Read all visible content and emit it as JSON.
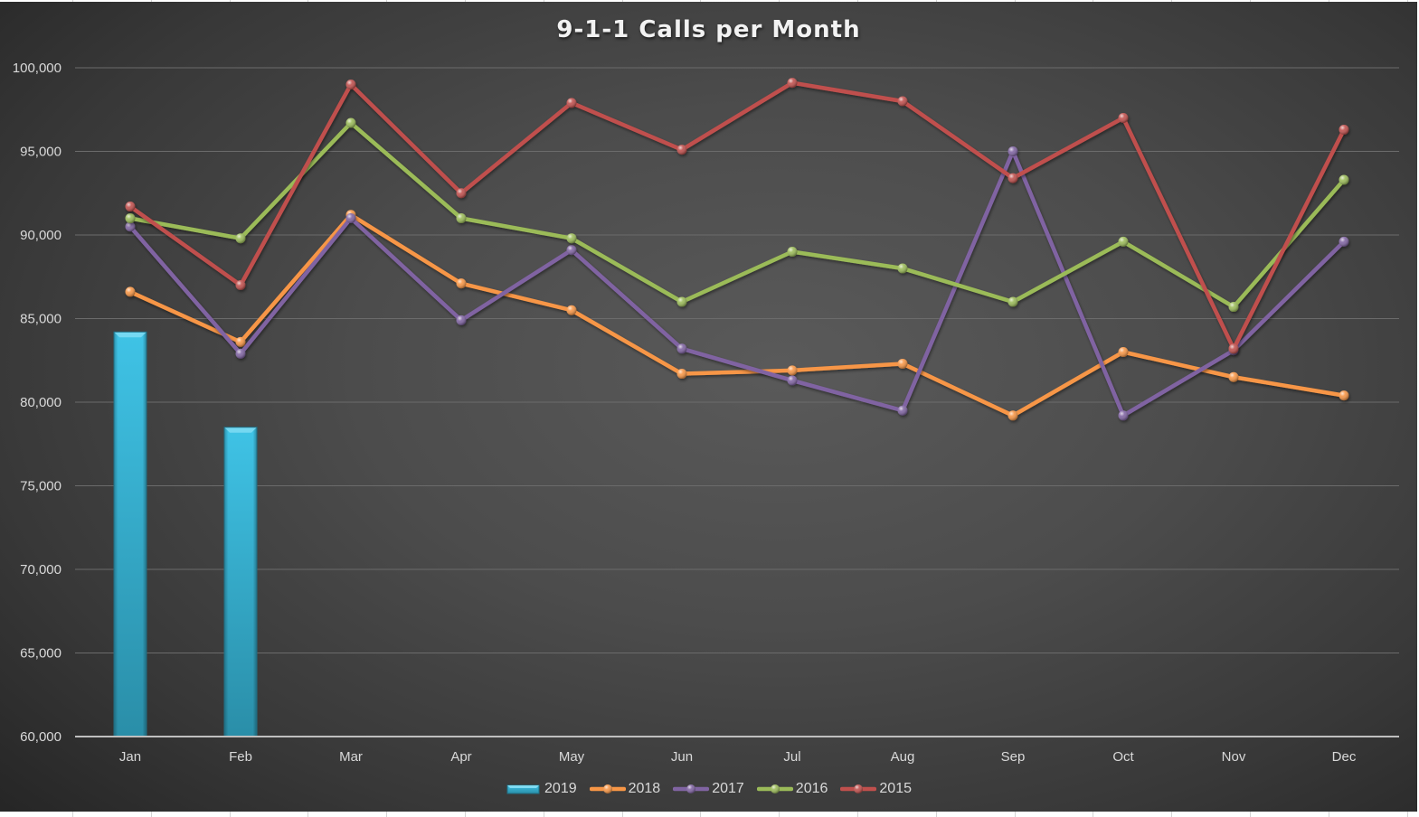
{
  "chart_data": {
    "type": "bar+line",
    "title": "9-1-1 Calls per Month",
    "xlabel": "",
    "ylabel": "",
    "categories": [
      "Jan",
      "Feb",
      "Mar",
      "Apr",
      "May",
      "Jun",
      "Jul",
      "Aug",
      "Sep",
      "Oct",
      "Nov",
      "Dec"
    ],
    "ylim": [
      60000,
      100000
    ],
    "yticks": [
      60000,
      65000,
      70000,
      75000,
      80000,
      85000,
      90000,
      95000,
      100000
    ],
    "ytick_labels": [
      "60,000",
      "65,000",
      "70,000",
      "75,000",
      "80,000",
      "85,000",
      "90,000",
      "95,000",
      "100,000"
    ],
    "grid": true,
    "legend_position": "bottom",
    "series": [
      {
        "name": "2019",
        "type": "bar",
        "color": "#38bde0",
        "values": [
          84200,
          78500,
          null,
          null,
          null,
          null,
          null,
          null,
          null,
          null,
          null,
          null
        ]
      },
      {
        "name": "2018",
        "type": "line",
        "color": "#f79646",
        "values": [
          86600,
          83600,
          91200,
          87100,
          85500,
          81700,
          81900,
          82300,
          79200,
          83000,
          81500,
          80400
        ]
      },
      {
        "name": "2017",
        "type": "line",
        "color": "#8064a2",
        "values": [
          90500,
          82900,
          91000,
          84900,
          89100,
          83200,
          81300,
          79500,
          95000,
          79200,
          83100,
          89600
        ]
      },
      {
        "name": "2016",
        "type": "line",
        "color": "#9bbb59",
        "values": [
          91000,
          89800,
          96700,
          91000,
          89800,
          86000,
          89000,
          88000,
          86000,
          89600,
          85700,
          93300
        ]
      },
      {
        "name": "2015",
        "type": "line",
        "color": "#c0504d",
        "values": [
          91700,
          87000,
          99000,
          92500,
          97900,
          95100,
          99100,
          98000,
          93400,
          97000,
          83200,
          96300
        ]
      }
    ]
  },
  "legend": {
    "items": [
      {
        "label": "2019",
        "kind": "bar",
        "color": "#38bde0"
      },
      {
        "label": "2018",
        "kind": "line",
        "color": "#f79646"
      },
      {
        "label": "2017",
        "kind": "line",
        "color": "#8064a2"
      },
      {
        "label": "2016",
        "kind": "line",
        "color": "#9bbb59"
      },
      {
        "label": "2015",
        "kind": "line",
        "color": "#c0504d"
      }
    ]
  }
}
